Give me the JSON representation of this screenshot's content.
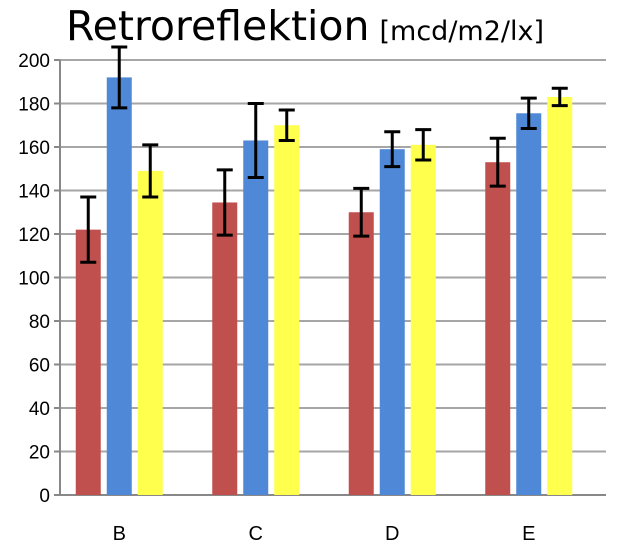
{
  "chart_data": {
    "type": "bar",
    "title": "Retroreflektion",
    "unit": "[mcd/m2/lx]",
    "xlabel": "",
    "ylabel": "",
    "categories": [
      "B",
      "C",
      "D",
      "E"
    ],
    "ylim": [
      0,
      200
    ],
    "yticks": [
      0,
      20,
      40,
      60,
      80,
      100,
      120,
      140,
      160,
      180,
      200
    ],
    "grid": true,
    "legend": "none",
    "series": [
      {
        "color": "#c0504d",
        "values": [
          122,
          134.5,
          130,
          153
        ],
        "error": [
          15,
          15,
          11,
          11
        ]
      },
      {
        "color": "#4f88d6",
        "values": [
          192,
          163,
          159,
          175.5
        ],
        "error": [
          14,
          17,
          8,
          7
        ]
      },
      {
        "color": "#ffff4d",
        "values": [
          149,
          170,
          161,
          183
        ],
        "error": [
          12,
          7,
          7,
          4
        ]
      }
    ]
  }
}
